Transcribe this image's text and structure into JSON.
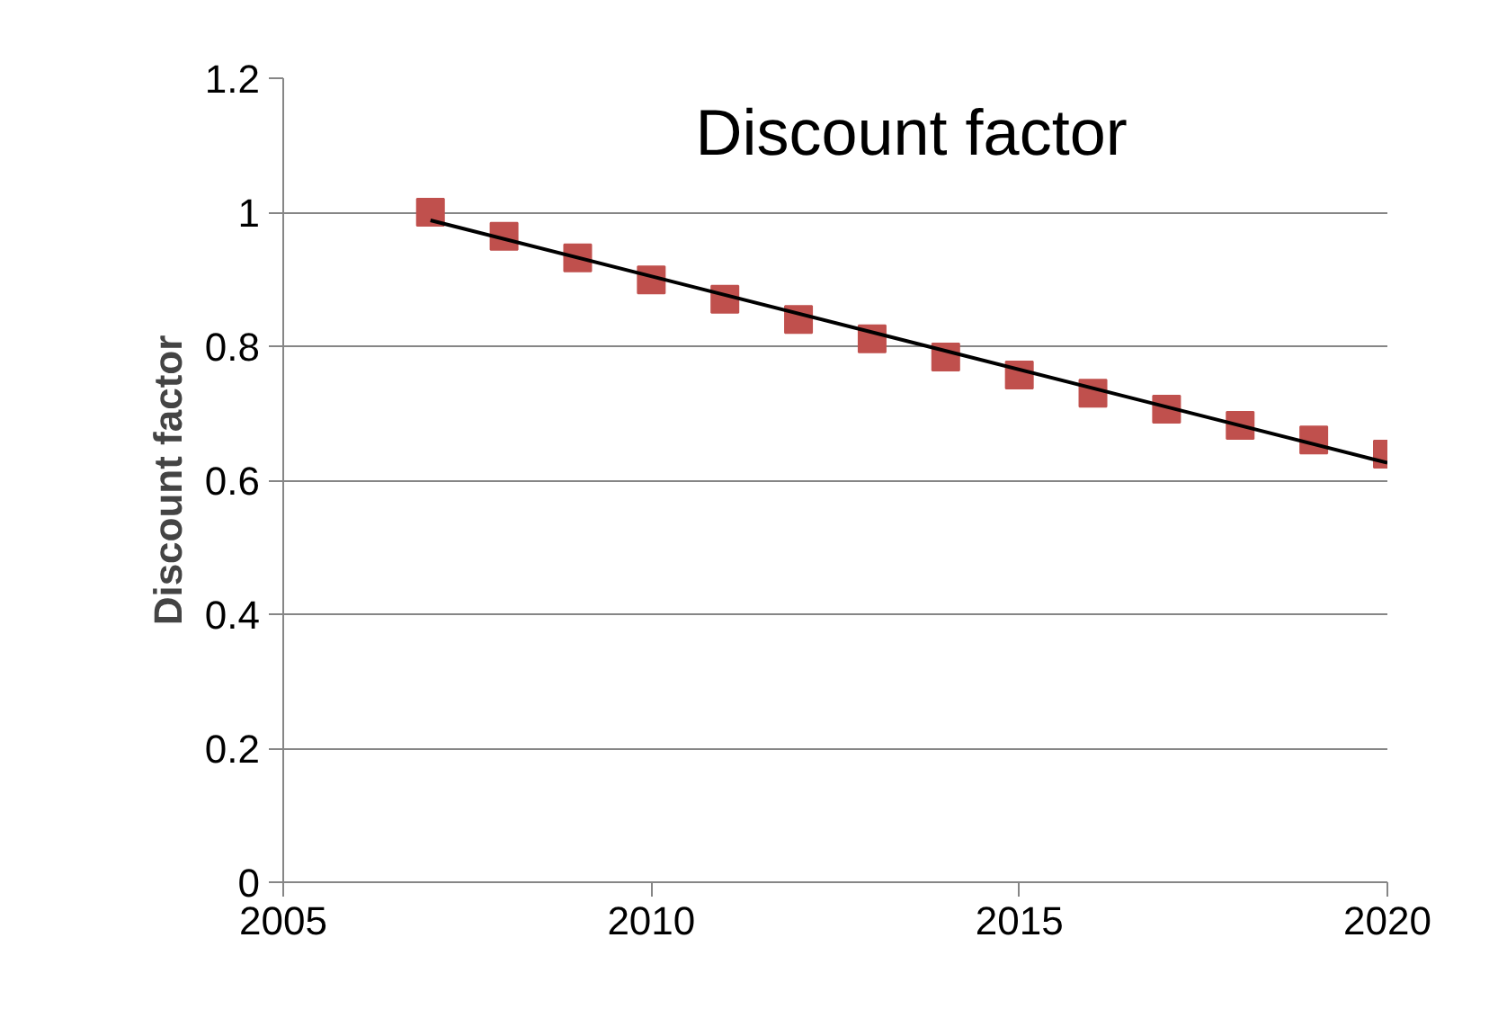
{
  "chart_data": {
    "type": "scatter",
    "title": "Discount factor",
    "ylabel": "Discount factor",
    "x": [
      2007,
      2008,
      2009,
      2010,
      2011,
      2012,
      2013,
      2014,
      2015,
      2016,
      2017,
      2018,
      2019,
      2020
    ],
    "series": [
      {
        "color": "#c0504d",
        "values": [
          1.0,
          0.964,
          0.932,
          0.899,
          0.87,
          0.84,
          0.811,
          0.784,
          0.757,
          0.73,
          0.706,
          0.682,
          0.66,
          0.639
        ]
      },
      {
        "type": "line",
        "color": "#000000",
        "marker": "none",
        "x": [
          2007,
          2020
        ],
        "values": [
          0.988,
          0.626
        ]
      }
    ],
    "xlim": [
      2005,
      2020
    ],
    "xticks": [
      2005,
      2010,
      2015,
      2020
    ],
    "ylim": [
      0,
      1.2
    ],
    "yticks": [
      {
        "value": 0,
        "label": "0"
      },
      0.2,
      0.4,
      0.6,
      0.8,
      {
        "value": 1,
        "label": "1"
      },
      1.2
    ],
    "grid": "y",
    "marker": "square"
  }
}
